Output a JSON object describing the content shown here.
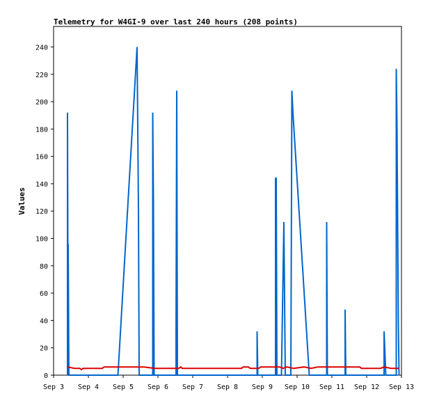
{
  "chart_data": {
    "type": "line",
    "title": "Telemetry for W4GI-9 over last 240 hours (208 points)",
    "xlabel": "",
    "ylabel": "Values",
    "x_axis": {
      "unit": "days",
      "range": [
        "Sep 3",
        "Sep 13"
      ],
      "ticks": [
        "Sep 3",
        "Sep 4",
        "Sep 5",
        "Sep 6",
        "Sep 7",
        "Sep 8",
        "Sep 9",
        "Sep 10",
        "Sep 11",
        "Sep 12",
        "Sep 13"
      ]
    },
    "ylim": [
      0,
      255
    ],
    "y_ticks": [
      0,
      20,
      40,
      60,
      80,
      100,
      120,
      140,
      160,
      180,
      200,
      220,
      240
    ],
    "grid": false,
    "series": [
      {
        "color": "#0066cc",
        "points": [
          [
            3.4,
            0
          ],
          [
            3.4,
            192
          ],
          [
            3.42,
            0
          ],
          [
            3.42,
            96
          ],
          [
            3.44,
            0
          ],
          [
            4.85,
            0
          ],
          [
            5.4,
            240
          ],
          [
            5.44,
            120
          ],
          [
            5.46,
            0
          ],
          [
            5.85,
            0
          ],
          [
            5.85,
            192
          ],
          [
            5.87,
            128
          ],
          [
            5.89,
            0
          ],
          [
            6.52,
            0
          ],
          [
            6.52,
            32
          ],
          [
            6.54,
            208
          ],
          [
            6.56,
            0
          ],
          [
            8.85,
            0
          ],
          [
            8.85,
            32
          ],
          [
            8.87,
            0
          ],
          [
            9.38,
            0
          ],
          [
            9.38,
            144
          ],
          [
            9.4,
            144
          ],
          [
            9.42,
            0
          ],
          [
            9.55,
            0
          ],
          [
            9.62,
            112
          ],
          [
            9.66,
            0
          ],
          [
            9.82,
            0
          ],
          [
            9.85,
            208
          ],
          [
            9.88,
            192
          ],
          [
            10.35,
            0
          ],
          [
            10.85,
            0
          ],
          [
            10.85,
            112
          ],
          [
            10.87,
            0
          ],
          [
            11.38,
            0
          ],
          [
            11.38,
            48
          ],
          [
            11.4,
            0
          ],
          [
            12.5,
            0
          ],
          [
            12.5,
            32
          ],
          [
            12.55,
            0
          ],
          [
            12.85,
            0
          ],
          [
            12.85,
            224
          ],
          [
            12.87,
            186
          ],
          [
            12.89,
            112
          ],
          [
            12.91,
            38
          ],
          [
            12.93,
            0
          ]
        ]
      },
      {
        "color": "#dd0000",
        "points": [
          [
            3.4,
            6
          ],
          [
            3.6,
            5
          ],
          [
            3.75,
            5
          ],
          [
            3.8,
            4
          ],
          [
            3.85,
            5
          ],
          [
            4.4,
            5
          ],
          [
            4.45,
            6
          ],
          [
            5.0,
            6
          ],
          [
            5.6,
            6
          ],
          [
            5.9,
            5
          ],
          [
            6.6,
            5
          ],
          [
            6.65,
            6
          ],
          [
            6.7,
            5
          ],
          [
            8.4,
            5
          ],
          [
            8.45,
            6
          ],
          [
            8.6,
            6
          ],
          [
            8.65,
            5
          ],
          [
            8.9,
            5
          ],
          [
            8.95,
            6
          ],
          [
            9.5,
            6
          ],
          [
            9.6,
            5
          ],
          [
            9.7,
            6
          ],
          [
            9.9,
            5
          ],
          [
            10.2,
            6
          ],
          [
            10.4,
            5
          ],
          [
            10.6,
            6
          ],
          [
            11.8,
            6
          ],
          [
            11.85,
            5
          ],
          [
            12.4,
            5
          ],
          [
            12.5,
            6
          ],
          [
            12.7,
            5
          ],
          [
            12.93,
            5
          ]
        ]
      }
    ]
  }
}
